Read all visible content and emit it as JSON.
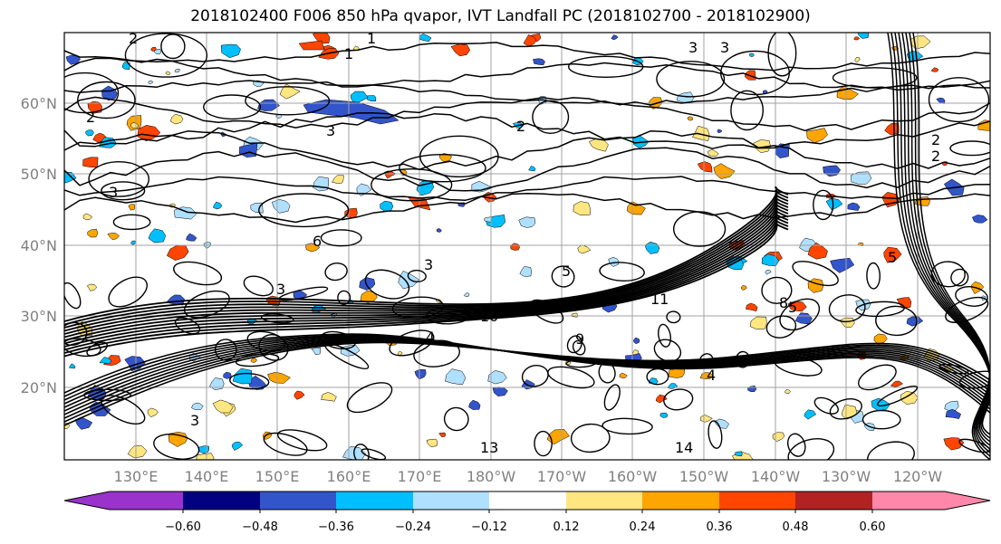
{
  "title": "2018102400 F006 850 hPa qvapor, IVT Landfall PC (2018102700 - 2018102900)",
  "lat_labels": [
    "60°N",
    "50°N",
    "40°N",
    "30°N",
    "20°N"
  ],
  "lon_labels": [
    "130°E",
    "140°E",
    "150°E",
    "160°E",
    "170°E",
    "180°W",
    "170°W",
    "160°W",
    "150°W",
    "140°W",
    "130°W",
    "120°W"
  ],
  "colorbar": {
    "ticks": [
      "−0.60",
      "−0.48",
      "−0.36",
      "−0.24",
      "−0.12",
      "0.12",
      "0.24",
      "0.36",
      "0.48",
      "0.60"
    ],
    "colors": [
      "#9933cc",
      "#000080",
      "#3355cc",
      "#00bfff",
      "#b0e0ff",
      "#ffffff",
      "#ffe680",
      "#ffa500",
      "#ff4500",
      "#b22222",
      "#ff88aa"
    ]
  },
  "contour_labels": [
    "1",
    "2",
    "3",
    "3",
    "2",
    "3",
    "2",
    "2",
    "3",
    "3",
    "6",
    "5",
    "11",
    "10",
    "9",
    "5",
    "3",
    "4",
    "13",
    "14",
    "8",
    "2",
    "3",
    "1",
    "4",
    "5"
  ],
  "colors": {
    "grid": "#a0a0a0",
    "contour": "#000000"
  }
}
